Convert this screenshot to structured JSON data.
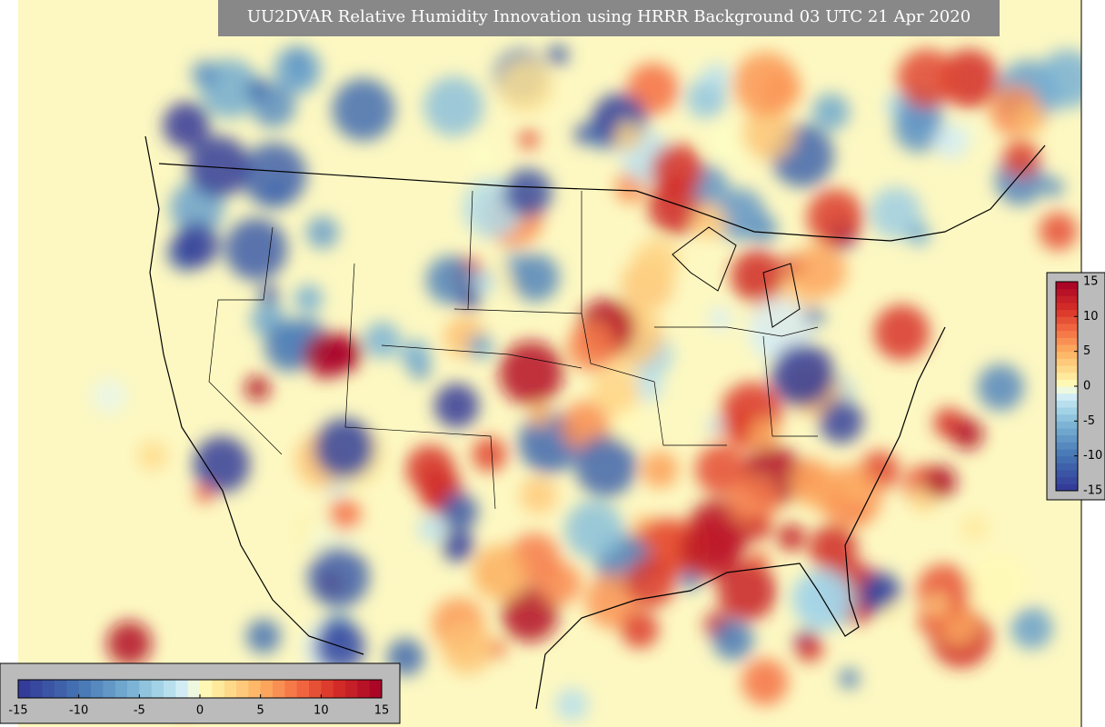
{
  "map": {
    "title": "UU2DVAR Relative Humidity Innovation using HRRR Background 03 UTC 21 Apr 2020",
    "colorbar_range": [
      -15,
      15
    ],
    "colorbar_horizontal": {
      "ticks": [
        -15,
        -10,
        -5,
        0,
        5,
        10,
        15
      ]
    },
    "colorbar_vertical": {
      "ticks": [
        15,
        10,
        5,
        0,
        -5,
        -10,
        -15
      ]
    }
  }
}
